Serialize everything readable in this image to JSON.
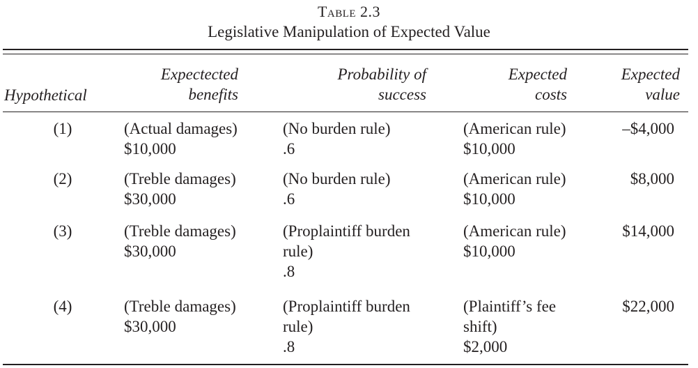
{
  "table": {
    "number": "Table 2.3",
    "title": "Legislative Manipulation of Expected Value",
    "headers": {
      "hypothetical": "Hypothetical",
      "benefits": "Expectected\nbenefits",
      "probability": "Probability of\nsuccess",
      "costs": "Expected\ncosts",
      "value": "Expected\nvalue"
    },
    "rows": [
      {
        "hypothetical": "(1)",
        "benefits": "(Actual damages)\n$10,000",
        "probability": "(No burden rule)\n.6",
        "costs": "(American rule)\n$10,000",
        "value": "–$4,000"
      },
      {
        "hypothetical": "(2)",
        "benefits": "(Treble damages)\n$30,000",
        "probability": "(No burden rule)\n.6",
        "costs": "(American rule)\n$10,000",
        "value": "$8,000"
      },
      {
        "hypothetical": "(3)",
        "benefits": "(Treble damages)\n$30,000",
        "probability": "(Proplaintiff burden\nrule)\n.8",
        "costs": "(American rule)\n$10,000",
        "value": "$14,000"
      },
      {
        "hypothetical": "(4)",
        "benefits": "(Treble damages)\n$30,000",
        "probability": "(Proplaintiff burden\nrule)\n.8",
        "costs": "(Plaintiff’s fee\nshift)\n$2,000",
        "value": "$22,000"
      }
    ]
  }
}
